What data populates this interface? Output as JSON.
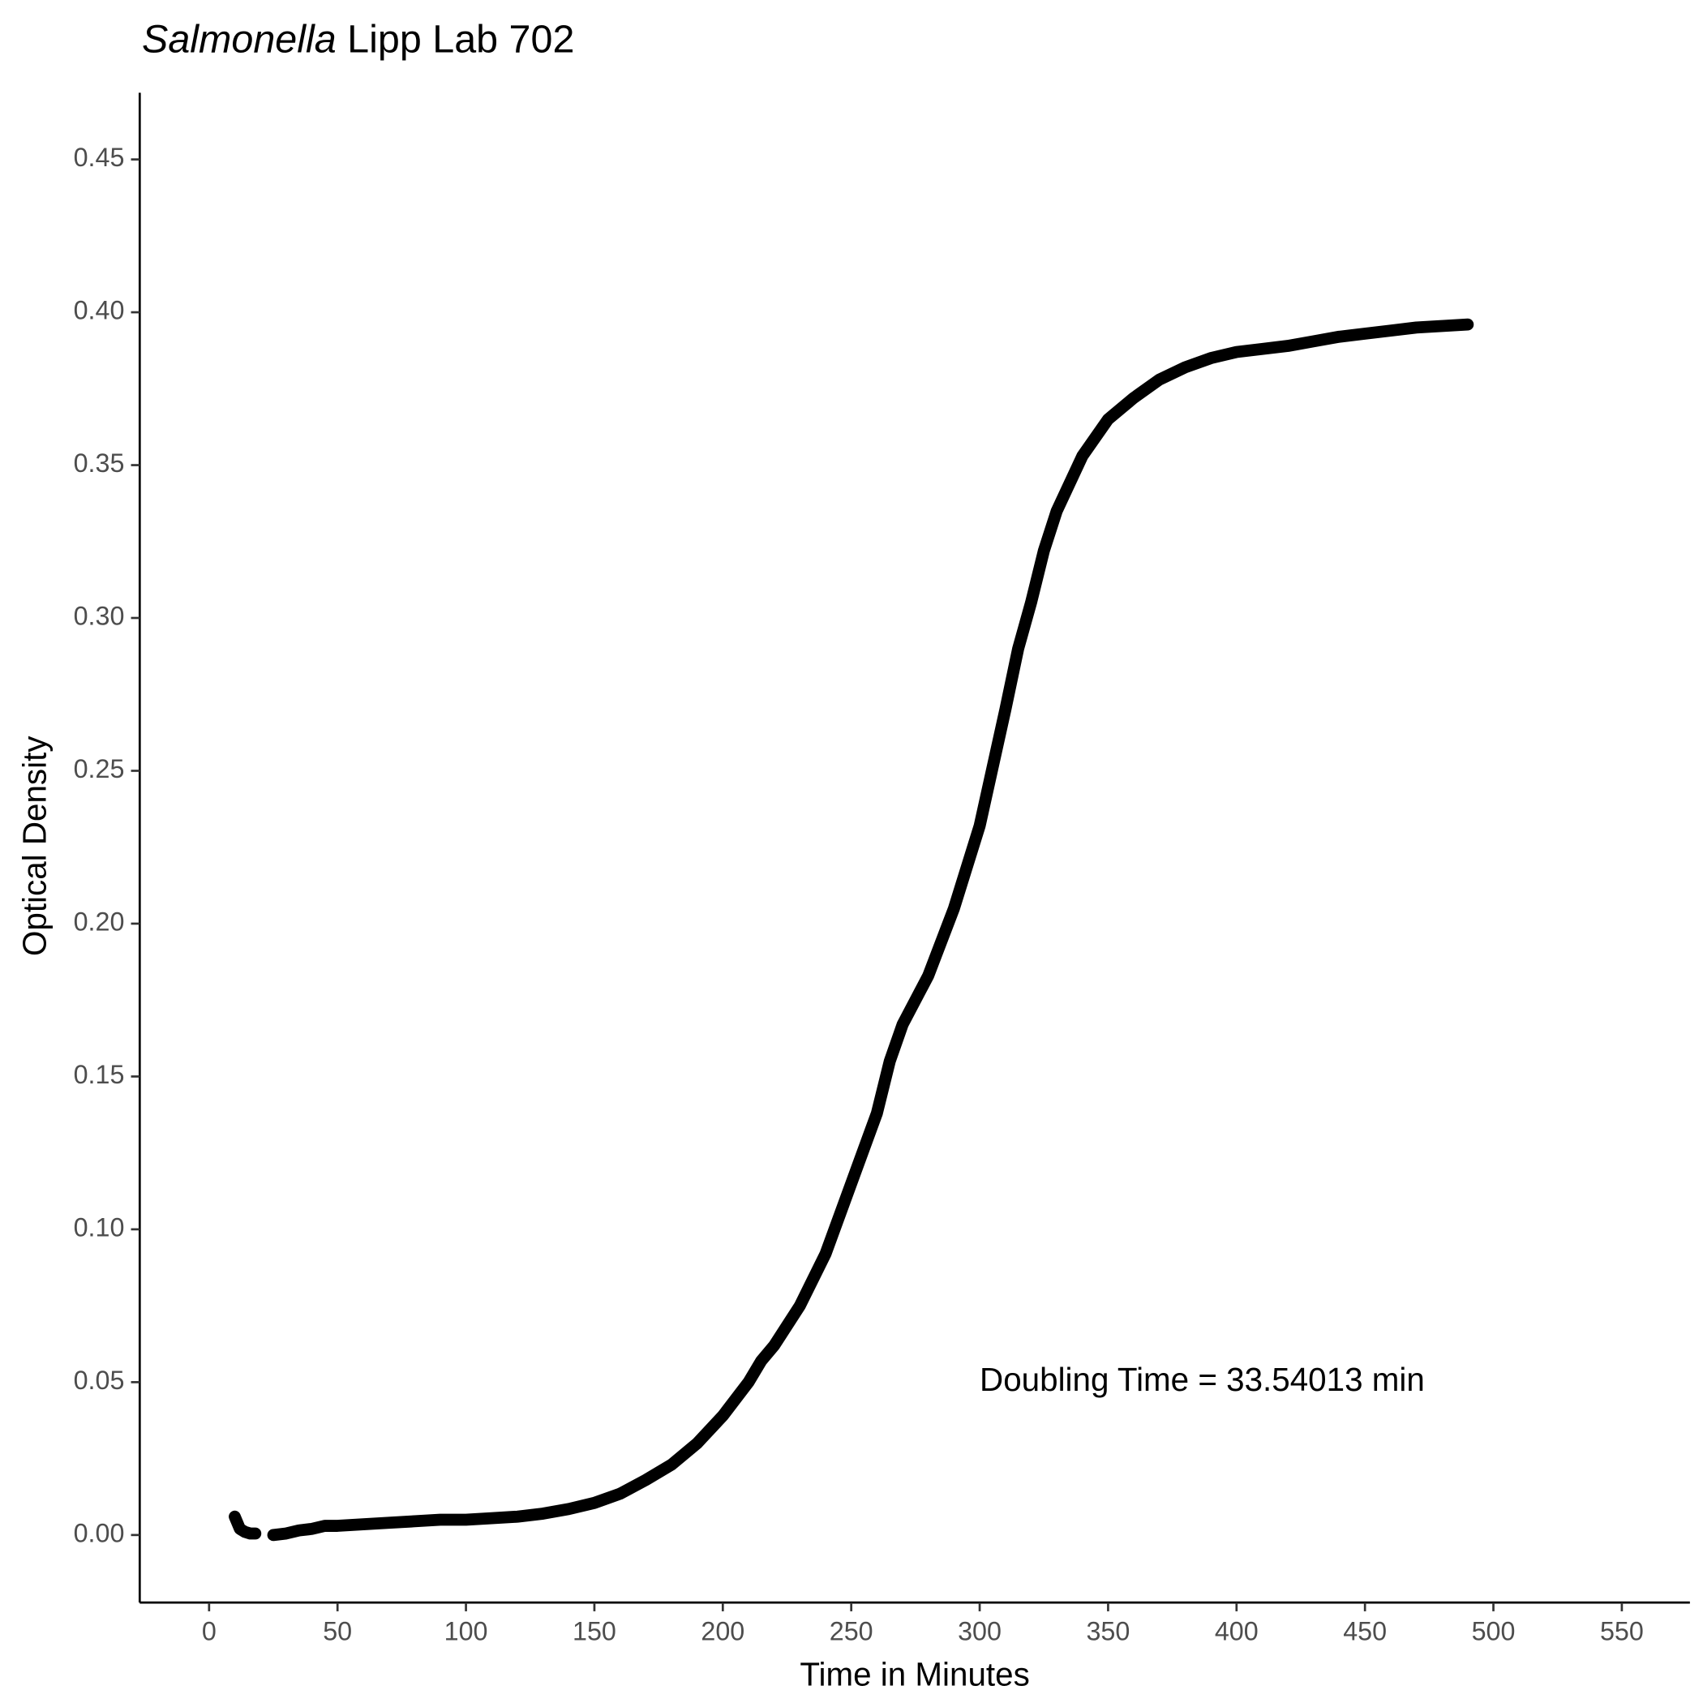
{
  "chart_data": {
    "type": "line",
    "title_parts": [
      {
        "text": "Salmonella",
        "italic": true
      },
      {
        "text": " Lipp Lab 702",
        "italic": false
      }
    ],
    "x_label": "Time in Minutes",
    "y_label": "Optical Density",
    "annotation": {
      "text": "Doubling Time = 33.54013 min",
      "x": 300,
      "y": 0.05
    },
    "xlim": [
      -27,
      576.5
    ],
    "ylim": [
      -0.0221,
      0.4718
    ],
    "xticks": [
      0,
      50,
      100,
      150,
      200,
      250,
      300,
      350,
      400,
      450,
      500,
      550
    ],
    "yticks": [
      {
        "value": 0,
        "label": "0.00"
      },
      0.05,
      {
        "value": 0.1,
        "label": "0.10"
      },
      0.15,
      {
        "value": 0.2,
        "label": "0.20"
      },
      0.25,
      {
        "value": 0.3,
        "label": "0.30"
      },
      0.35,
      {
        "value": 0.4,
        "label": "0.40"
      },
      0.45
    ],
    "grid": false,
    "series": [
      {
        "name": "Optical Density",
        "color": "#000000",
        "x": [
          10,
          11,
          12,
          14,
          16,
          18,
          21,
          25,
          30,
          35,
          40,
          45,
          50,
          60,
          70,
          80,
          90,
          100,
          110,
          120,
          130,
          140,
          150,
          160,
          170,
          180,
          190,
          200,
          210,
          215,
          220,
          230,
          240,
          250,
          260,
          265,
          270,
          280,
          290,
          300,
          310,
          315,
          320,
          325,
          330,
          340,
          350,
          360,
          370,
          380,
          390,
          400,
          410,
          420,
          430,
          440,
          450,
          460,
          470,
          480,
          490
        ],
        "values": [
          0.006,
          0.004,
          0.002,
          0.001,
          0.0005,
          0.0005,
          null,
          0.0,
          0.0005,
          0.0015,
          0.002,
          0.003,
          0.003,
          0.0035,
          0.004,
          0.0045,
          0.005,
          0.005,
          0.0055,
          0.006,
          0.007,
          0.0085,
          0.0105,
          0.0135,
          0.018,
          0.023,
          0.03,
          0.039,
          0.05,
          0.057,
          0.062,
          0.075,
          0.092,
          0.115,
          0.138,
          0.155,
          0.167,
          0.183,
          0.205,
          0.232,
          0.27,
          0.29,
          0.305,
          0.322,
          0.335,
          0.353,
          0.365,
          0.372,
          0.378,
          0.382,
          0.385,
          0.387,
          0.388,
          0.389,
          0.3905,
          0.392,
          0.393,
          0.394,
          0.395,
          0.3955,
          0.396
        ]
      }
    ]
  }
}
